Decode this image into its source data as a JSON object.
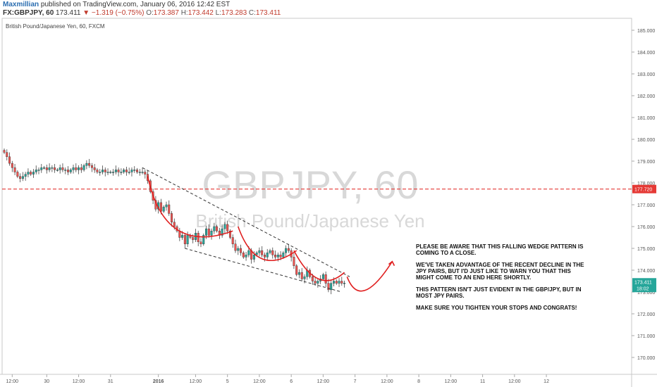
{
  "header": {
    "author": "Maxmillian",
    "published_text": "published on TradingView.com, January 06, 2016 12:42 EST",
    "symbol": "FX:GBPJPY, 60",
    "last": "173.411",
    "change": "−1.319 (−0.75%)",
    "o_label": "O:",
    "o": "173.387",
    "h_label": "H:",
    "h": "173.442",
    "l_label": "L:",
    "l": "173.283",
    "c_label": "C:",
    "c": "173.411"
  },
  "chart_subtitle": "British Pound/Japanese Yen, 60, FXCM",
  "watermark": {
    "symbol": "GBPJPY, 60",
    "name": "British Pound/Japanese Yen"
  },
  "annotation": [
    "PLEASE BE AWARE THAT THIS FALLING WEDGE PATTERN IS COMING TO A CLOSE.",
    "WE'VE TAKEN ADVANTAGE OF THE RECENT DECLINE IN THE JPY PAIRS, BUT I'D JUST LIKE TO WARN YOU THAT THIS MIGHT COME TO AN END HERE SHORTLY.",
    "THIS PATTERN ISN'T JUST EVIDENT IN THE GBP/JPY, BUT IN MOST JPY PAIRS.",
    "MAKE SURE YOU TIGHTEN YOUR STOPS AND CONGRATS!"
  ],
  "price_tags": {
    "level": "177.720",
    "current": "173.411",
    "timer": "18:02"
  },
  "colors": {
    "up": "#26a69a",
    "down": "#ef5350",
    "level": "#e53935",
    "arc": "#e02020",
    "author": "#2a6db0"
  },
  "chart_data": {
    "type": "candlestick",
    "y_ticks": [
      "185.000",
      "184.000",
      "183.000",
      "182.000",
      "181.000",
      "180.000",
      "179.000",
      "178.000",
      "177.000",
      "176.000",
      "175.000",
      "174.000",
      "173.000",
      "172.000",
      "171.000",
      "170.000"
    ],
    "ylim": [
      169.6,
      185.4
    ],
    "x_ticks": [
      {
        "label": "12:00",
        "i": 3
      },
      {
        "label": "30",
        "i": 16
      },
      {
        "label": "12:00",
        "i": 28
      },
      {
        "label": "31",
        "i": 40
      },
      {
        "label": "2016",
        "i": 58
      },
      {
        "label": "12:00",
        "i": 72
      },
      {
        "label": "5",
        "i": 84
      },
      {
        "label": "12:00",
        "i": 96
      },
      {
        "label": "6",
        "i": 108
      },
      {
        "label": "12:00",
        "i": 120
      },
      {
        "label": "7",
        "i": 132
      },
      {
        "label": "12:00",
        "i": 144
      },
      {
        "label": "8",
        "i": 156
      },
      {
        "label": "12:00",
        "i": 168
      },
      {
        "label": "11",
        "i": 180
      },
      {
        "label": "12:00",
        "i": 192
      },
      {
        "label": "12",
        "i": 204
      }
    ],
    "horizontal_level": 177.72,
    "wedge_upper": [
      [
        52,
        178.7
      ],
      [
        130,
        173.7
      ]
    ],
    "wedge_lower": [
      [
        68,
        175.0
      ],
      [
        127,
        173.0
      ]
    ],
    "closes": [
      179.4,
      179.2,
      178.9,
      178.7,
      178.5,
      178.3,
      178.2,
      178.3,
      178.4,
      178.5,
      178.4,
      178.5,
      178.6,
      178.6,
      178.7,
      178.7,
      178.6,
      178.7,
      178.7,
      178.6,
      178.6,
      178.7,
      178.6,
      178.6,
      178.5,
      178.6,
      178.7,
      178.6,
      178.7,
      178.6,
      178.8,
      178.9,
      178.8,
      178.7,
      178.6,
      178.5,
      178.5,
      178.6,
      178.5,
      178.5,
      178.5,
      178.5,
      178.6,
      178.5,
      178.5,
      178.6,
      178.5,
      178.5,
      178.6,
      178.6,
      178.5,
      178.5,
      178.5,
      178.4,
      178.1,
      177.6,
      177.2,
      176.8,
      177.1,
      176.7,
      176.9,
      177.0,
      176.6,
      176.2,
      176.0,
      175.8,
      175.5,
      175.6,
      175.2,
      175.6,
      175.5,
      175.4,
      175.7,
      175.3,
      175.2,
      175.6,
      175.9,
      175.6,
      175.8,
      176.0,
      175.8,
      175.6,
      175.9,
      176.1,
      175.8,
      175.5,
      175.2,
      174.9,
      175.0,
      174.8,
      174.6,
      174.7,
      174.9,
      174.5,
      174.7,
      174.8,
      174.9,
      174.7,
      174.6,
      174.8,
      174.9,
      174.7,
      174.6,
      174.7,
      174.6,
      174.8,
      175.0,
      174.9,
      174.6,
      174.2,
      173.8,
      173.9,
      173.6,
      173.7,
      174.0,
      173.7,
      173.5,
      173.4,
      173.5,
      173.6,
      173.8,
      173.4,
      173.1,
      173.4,
      173.5,
      173.4,
      173.5,
      173.4,
      173.41
    ]
  }
}
